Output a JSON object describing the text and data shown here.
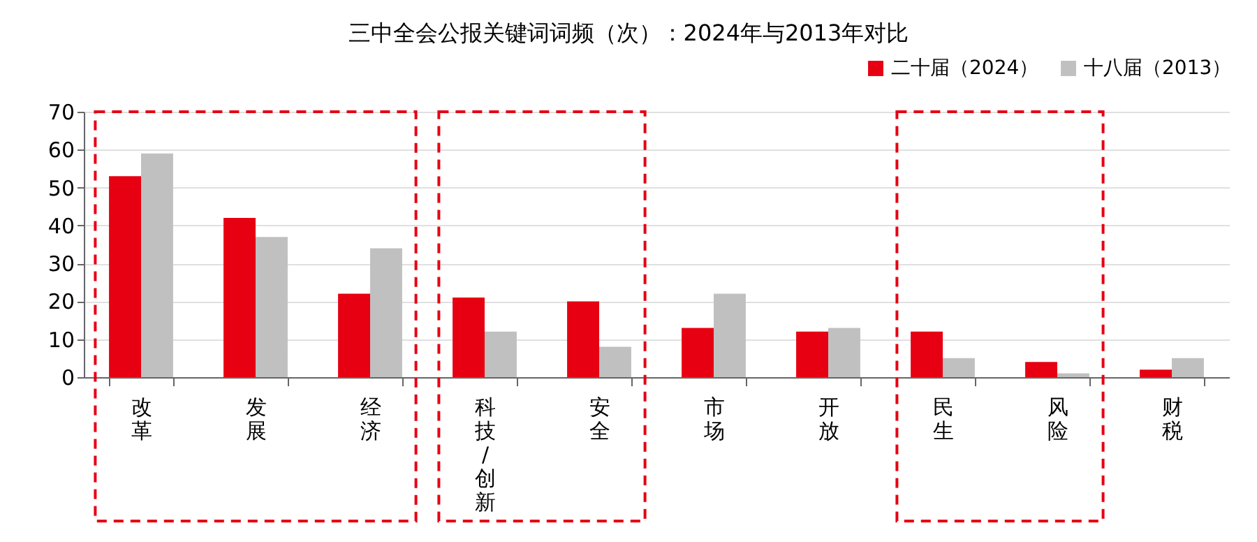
{
  "chart_data": {
    "type": "bar",
    "title": "三中全会公报关键词词频（次）：2024年与2013年对比",
    "categories": [
      "改革",
      "发展",
      "经济",
      "科技/创新",
      "安全",
      "市场",
      "开放",
      "民生",
      "风险",
      "财税"
    ],
    "series": [
      {
        "name": "二十届（2024）",
        "color": "#e60012",
        "values": [
          53,
          42,
          22,
          21,
          20,
          13,
          12,
          12,
          4,
          2
        ]
      },
      {
        "name": "十八届（2013）",
        "color": "#c0c0c0",
        "values": [
          59,
          37,
          34,
          12,
          8,
          22,
          13,
          5,
          1,
          5
        ]
      }
    ],
    "ylim": [
      0,
      70
    ],
    "yticks": [
      0,
      10,
      20,
      30,
      40,
      50,
      60,
      70
    ],
    "grid": "y",
    "legend": "top right"
  }
}
